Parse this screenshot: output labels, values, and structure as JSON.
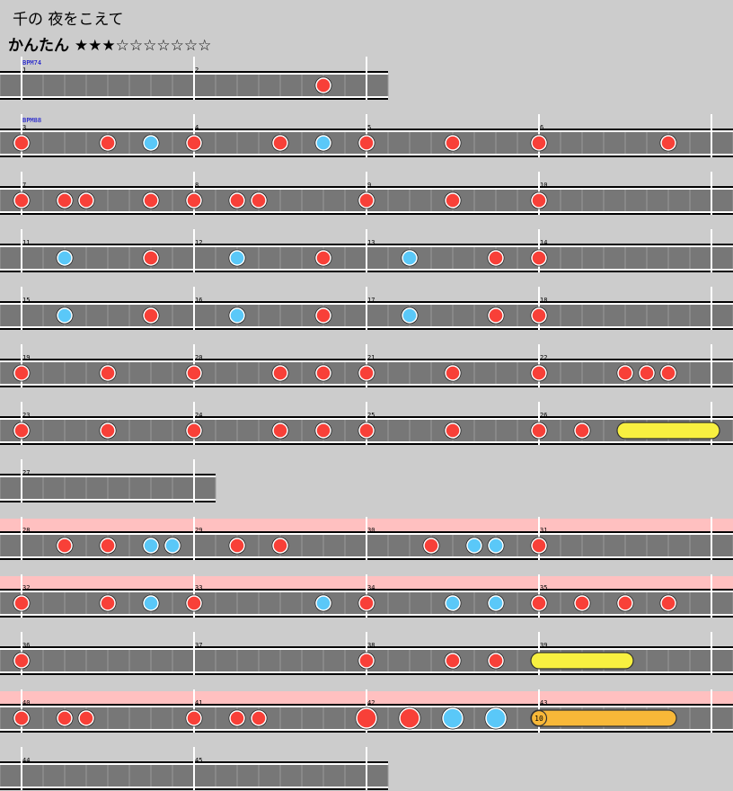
{
  "song": {
    "title": "千の 夜をこえて",
    "difficulty": "かんたん",
    "stars": "★★★☆☆☆☆☆☆☆"
  },
  "colors": {
    "background": "#cccccc",
    "lane": "#777777",
    "gogo": "#ffc0c0",
    "don": "#f84038",
    "ka": "#5ac8f8",
    "roll": "#f8f040",
    "balloon": "#f8b838"
  },
  "chart_data": {
    "type": "taiko-score",
    "bpm_changes": [
      {
        "bar": 1,
        "label": "BPM74"
      },
      {
        "bar": 3,
        "label": "BPM88"
      }
    ],
    "rows": [
      {
        "bars": [
          1,
          2
        ],
        "beats_per_bar": 4,
        "lengths": [
          4,
          4
        ],
        "gogo": false,
        "notes": [
          {
            "pos": 14,
            "type": "don"
          }
        ]
      },
      {
        "bars": [
          3,
          4,
          5,
          6
        ],
        "beats_per_bar": 4,
        "lengths": [
          4,
          4,
          4,
          4
        ],
        "gogo": false,
        "notes": [
          {
            "pos": 0,
            "type": "don"
          },
          {
            "pos": 4,
            "type": "don"
          },
          {
            "pos": 6,
            "type": "ka"
          },
          {
            "pos": 8,
            "type": "don"
          },
          {
            "pos": 12,
            "type": "don"
          },
          {
            "pos": 14,
            "type": "ka"
          },
          {
            "pos": 16,
            "type": "don"
          },
          {
            "pos": 20,
            "type": "don"
          },
          {
            "pos": 24,
            "type": "don"
          },
          {
            "pos": 30,
            "type": "don"
          }
        ]
      },
      {
        "bars": [
          7,
          8,
          9,
          10
        ],
        "beats_per_bar": 4,
        "lengths": [
          4,
          4,
          4,
          4
        ],
        "gogo": false,
        "notes": [
          {
            "pos": 0,
            "type": "don"
          },
          {
            "pos": 2,
            "type": "don"
          },
          {
            "pos": 3,
            "type": "don"
          },
          {
            "pos": 6,
            "type": "don"
          },
          {
            "pos": 8,
            "type": "don"
          },
          {
            "pos": 10,
            "type": "don"
          },
          {
            "pos": 11,
            "type": "don"
          },
          {
            "pos": 16,
            "type": "don"
          },
          {
            "pos": 20,
            "type": "don"
          },
          {
            "pos": 24,
            "type": "don"
          }
        ]
      },
      {
        "bars": [
          11,
          12,
          13,
          14
        ],
        "beats_per_bar": 4,
        "lengths": [
          4,
          4,
          4,
          4
        ],
        "gogo": false,
        "notes": [
          {
            "pos": 2,
            "type": "ka"
          },
          {
            "pos": 6,
            "type": "don"
          },
          {
            "pos": 10,
            "type": "ka"
          },
          {
            "pos": 14,
            "type": "don"
          },
          {
            "pos": 18,
            "type": "ka"
          },
          {
            "pos": 22,
            "type": "don"
          },
          {
            "pos": 24,
            "type": "don"
          }
        ]
      },
      {
        "bars": [
          15,
          16,
          17,
          18
        ],
        "beats_per_bar": 4,
        "lengths": [
          4,
          4,
          4,
          4
        ],
        "gogo": false,
        "notes": [
          {
            "pos": 2,
            "type": "ka"
          },
          {
            "pos": 6,
            "type": "don"
          },
          {
            "pos": 10,
            "type": "ka"
          },
          {
            "pos": 14,
            "type": "don"
          },
          {
            "pos": 18,
            "type": "ka"
          },
          {
            "pos": 22,
            "type": "don"
          },
          {
            "pos": 24,
            "type": "don"
          }
        ]
      },
      {
        "bars": [
          19,
          20,
          21,
          22
        ],
        "beats_per_bar": 4,
        "lengths": [
          4,
          4,
          4,
          4
        ],
        "gogo": false,
        "notes": [
          {
            "pos": 0,
            "type": "don"
          },
          {
            "pos": 4,
            "type": "don"
          },
          {
            "pos": 8,
            "type": "don"
          },
          {
            "pos": 12,
            "type": "don"
          },
          {
            "pos": 14,
            "type": "don"
          },
          {
            "pos": 16,
            "type": "don"
          },
          {
            "pos": 20,
            "type": "don"
          },
          {
            "pos": 24,
            "type": "don"
          },
          {
            "pos": 28,
            "type": "don"
          },
          {
            "pos": 29,
            "type": "don"
          },
          {
            "pos": 30,
            "type": "don"
          }
        ]
      },
      {
        "bars": [
          23,
          24,
          25,
          26
        ],
        "beats_per_bar": 4,
        "lengths": [
          4,
          4,
          4,
          4
        ],
        "gogo": false,
        "notes": [
          {
            "pos": 0,
            "type": "don"
          },
          {
            "pos": 4,
            "type": "don"
          },
          {
            "pos": 8,
            "type": "don"
          },
          {
            "pos": 12,
            "type": "don"
          },
          {
            "pos": 14,
            "type": "don"
          },
          {
            "pos": 16,
            "type": "don"
          },
          {
            "pos": 20,
            "type": "don"
          },
          {
            "pos": 24,
            "type": "don"
          },
          {
            "pos": 26,
            "type": "don"
          },
          {
            "type": "roll",
            "start": 28,
            "end": 32
          }
        ]
      },
      {
        "bars": [
          27
        ],
        "beats_per_bar": 4,
        "lengths": [
          4
        ],
        "gogo": false,
        "notes": []
      },
      {
        "bars": [
          28,
          29,
          30,
          31
        ],
        "beats_per_bar": 4,
        "lengths": [
          4,
          4,
          4,
          4
        ],
        "gogo": true,
        "notes": [
          {
            "pos": 2,
            "type": "don"
          },
          {
            "pos": 4,
            "type": "don"
          },
          {
            "pos": 6,
            "type": "ka"
          },
          {
            "pos": 7,
            "type": "ka"
          },
          {
            "pos": 10,
            "type": "don"
          },
          {
            "pos": 12,
            "type": "don"
          },
          {
            "pos": 19,
            "type": "don"
          },
          {
            "pos": 21,
            "type": "ka"
          },
          {
            "pos": 22,
            "type": "ka"
          },
          {
            "pos": 24,
            "type": "don"
          }
        ]
      },
      {
        "bars": [
          32,
          33,
          34,
          35
        ],
        "beats_per_bar": 4,
        "lengths": [
          4,
          4,
          4,
          4
        ],
        "gogo": true,
        "notes": [
          {
            "pos": 0,
            "type": "don"
          },
          {
            "pos": 4,
            "type": "don"
          },
          {
            "pos": 6,
            "type": "ka"
          },
          {
            "pos": 8,
            "type": "don"
          },
          {
            "pos": 14,
            "type": "ka"
          },
          {
            "pos": 16,
            "type": "don"
          },
          {
            "pos": 20,
            "type": "ka"
          },
          {
            "pos": 22,
            "type": "ka"
          },
          {
            "pos": 24,
            "type": "don"
          },
          {
            "pos": 26,
            "type": "don"
          },
          {
            "pos": 28,
            "type": "don"
          },
          {
            "pos": 30,
            "type": "don"
          }
        ]
      },
      {
        "bars": [
          36,
          37,
          38,
          39
        ],
        "beats_per_bar": 4,
        "lengths": [
          4,
          4,
          4,
          4
        ],
        "gogo": false,
        "notes": [
          {
            "pos": 0,
            "type": "don"
          },
          {
            "pos": 16,
            "type": "don"
          },
          {
            "pos": 20,
            "type": "don"
          },
          {
            "pos": 22,
            "type": "don"
          },
          {
            "type": "roll",
            "start": 24,
            "end": 28
          }
        ]
      },
      {
        "bars": [
          40,
          41,
          42,
          43
        ],
        "beats_per_bar": 4,
        "lengths": [
          4,
          4,
          4,
          4
        ],
        "gogo": true,
        "notes": [
          {
            "pos": 0,
            "type": "don"
          },
          {
            "pos": 2,
            "type": "don"
          },
          {
            "pos": 3,
            "type": "don"
          },
          {
            "pos": 8,
            "type": "don"
          },
          {
            "pos": 10,
            "type": "don"
          },
          {
            "pos": 11,
            "type": "don"
          },
          {
            "pos": 16,
            "type": "big-don"
          },
          {
            "pos": 18,
            "type": "big-don"
          },
          {
            "pos": 20,
            "type": "big-ka"
          },
          {
            "pos": 22,
            "type": "big-ka"
          },
          {
            "type": "balloon",
            "start": 24,
            "end": 30,
            "count": "10"
          }
        ]
      },
      {
        "bars": [
          44,
          45
        ],
        "beats_per_bar": 4,
        "lengths": [
          4,
          4
        ],
        "gogo": false,
        "notes": []
      }
    ]
  }
}
